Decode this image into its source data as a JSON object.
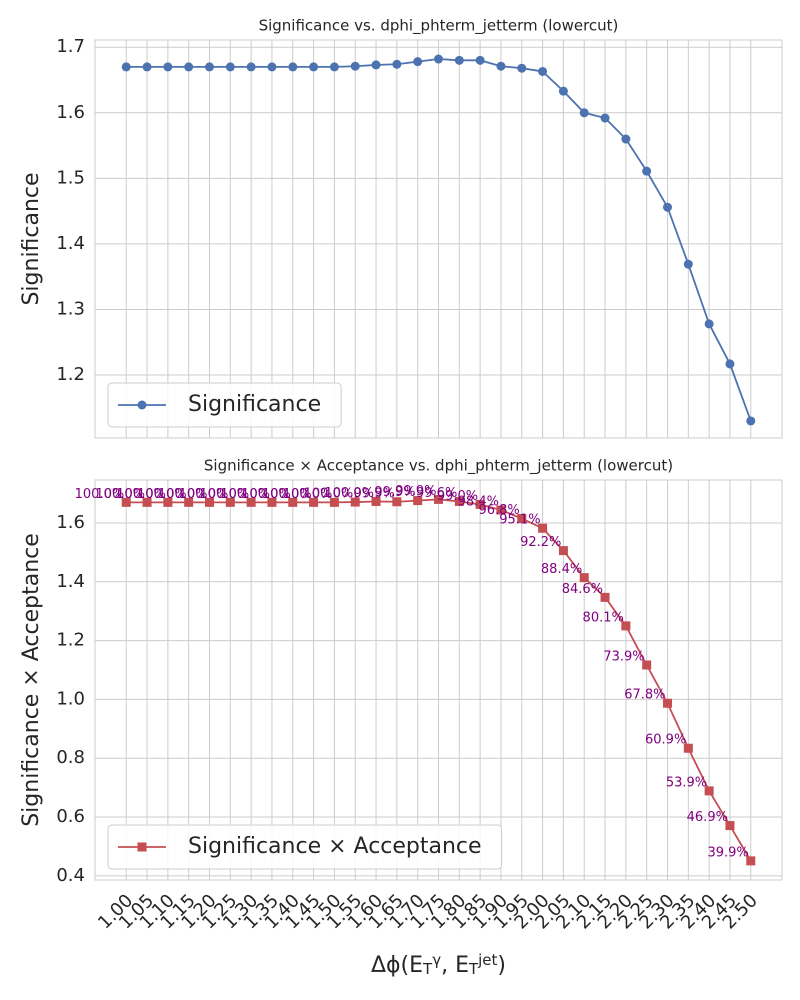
{
  "chart_data": [
    {
      "type": "line",
      "title": "Significance vs. dphi_phterm_jetterm (lowercut)",
      "ylabel": "Significance",
      "categories": [
        "1.00",
        "1.05",
        "1.10",
        "1.15",
        "1.20",
        "1.25",
        "1.30",
        "1.35",
        "1.40",
        "1.45",
        "1.50",
        "1.55",
        "1.60",
        "1.65",
        "1.70",
        "1.75",
        "1.80",
        "1.85",
        "1.90",
        "1.95",
        "2.00",
        "2.05",
        "2.10",
        "2.15",
        "2.20",
        "2.25",
        "2.30",
        "2.35",
        "2.40",
        "2.45",
        "2.50"
      ],
      "series": [
        {
          "name": "Significance",
          "color": "#4c72b0",
          "marker": "circle",
          "values": [
            1.67,
            1.67,
            1.67,
            1.67,
            1.67,
            1.67,
            1.67,
            1.67,
            1.67,
            1.67,
            1.67,
            1.671,
            1.673,
            1.674,
            1.678,
            1.682,
            1.68,
            1.68,
            1.671,
            1.668,
            1.663,
            1.633,
            1.6,
            1.592,
            1.56,
            1.511,
            1.456,
            1.369,
            1.278,
            1.217,
            1.13
          ]
        }
      ],
      "ylim": [
        1.104,
        1.711
      ],
      "yticks": [
        1.2,
        1.3,
        1.4,
        1.5,
        1.6,
        1.7
      ],
      "grid": true,
      "legend": "lower left"
    },
    {
      "type": "line",
      "title": "Significance × Acceptance vs. dphi_phterm_jetterm (lowercut)",
      "ylabel": "Significance × Acceptance",
      "xlabel": "Δϕ(E_T^γ, E_T^{jet})",
      "categories": [
        "1.00",
        "1.05",
        "1.10",
        "1.15",
        "1.20",
        "1.25",
        "1.30",
        "1.35",
        "1.40",
        "1.45",
        "1.50",
        "1.55",
        "1.60",
        "1.65",
        "1.70",
        "1.75",
        "1.80",
        "1.85",
        "1.90",
        "1.95",
        "2.00",
        "2.05",
        "2.10",
        "2.15",
        "2.20",
        "2.25",
        "2.30",
        "2.35",
        "2.40",
        "2.45",
        "2.50"
      ],
      "series": [
        {
          "name": "Significance × Acceptance",
          "color": "#c44e52",
          "marker": "square",
          "values": [
            1.67,
            1.67,
            1.67,
            1.67,
            1.67,
            1.67,
            1.67,
            1.67,
            1.67,
            1.67,
            1.67,
            1.671,
            1.673,
            1.672,
            1.676,
            1.68,
            1.673,
            1.663,
            1.644,
            1.615,
            1.582,
            1.506,
            1.414,
            1.347,
            1.25,
            1.117,
            0.987,
            0.834,
            0.689,
            0.571,
            0.451
          ],
          "point_labels": [
            "100.0%",
            "100.0%",
            "100.0%",
            "100.0%",
            "100.0%",
            "100.0%",
            "100.0%",
            "100.0%",
            "100.0%",
            "100.0%",
            "100.0%",
            "100.0%",
            "100.0%",
            "99.9%",
            "99.9%",
            "99.9%",
            "99.6%",
            "99.0%",
            "98.4%",
            "96.8%",
            "95.1%",
            "92.2%",
            "88.4%",
            "84.6%",
            "80.1%",
            "73.9%",
            "67.8%",
            "60.9%",
            "53.9%",
            "46.9%",
            "39.9%"
          ]
        }
      ],
      "ylim": [
        0.386,
        1.746
      ],
      "yticks": [
        0.4,
        0.6,
        0.8,
        {
          "value": 1,
          "label": "1.0"
        },
        1.2,
        1.4,
        1.6
      ],
      "grid": true,
      "legend": "lower left"
    }
  ]
}
